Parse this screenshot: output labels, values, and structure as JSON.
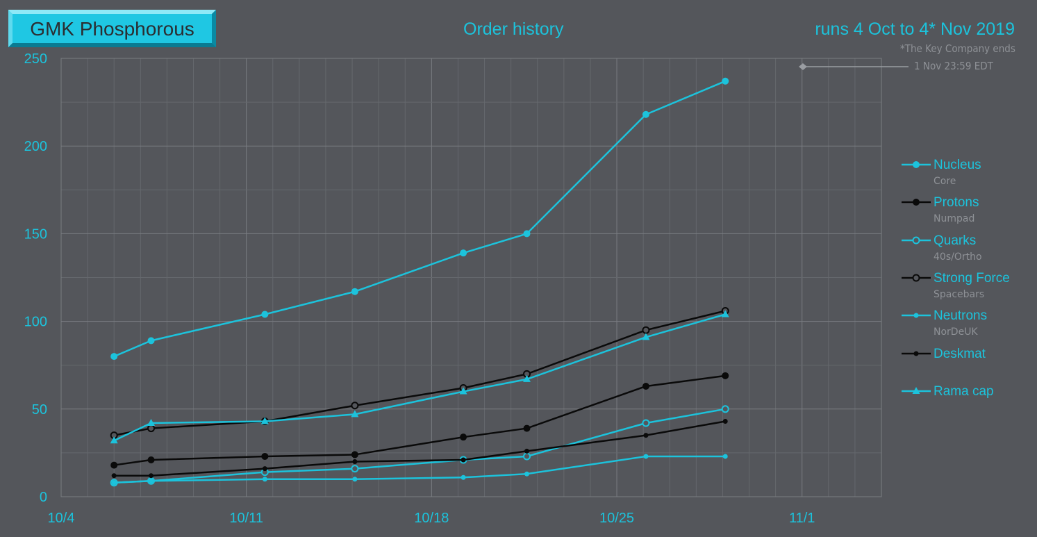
{
  "badge": {
    "label": "GMK Phosphorous"
  },
  "header": {
    "title": "Order history",
    "runs": "runs 4 Oct to 4* Nov 2019"
  },
  "note": {
    "line1": "*The Key Company ends",
    "line2": "1 Nov  23:59 EDT"
  },
  "colors": {
    "cyan": "#1cc3dc",
    "black": "#0a0a0a",
    "grid": "#6b6e73",
    "background": "#54565b"
  },
  "chart_data": {
    "type": "line",
    "x_ticks": [
      "10/4",
      "10/11",
      "10/18",
      "10/25",
      "11/1"
    ],
    "y_ticks": [
      0,
      50,
      100,
      150,
      200,
      250
    ],
    "xlim": [
      "10/4",
      "11/4"
    ],
    "ylim": [
      0,
      250
    ],
    "grid": true,
    "legend_position": "right",
    "x": [
      "10/6",
      "10/7.4",
      "10/11.7",
      "10/15.1",
      "10/19.2",
      "10/21.6",
      "10/26.1",
      "10/29.1"
    ],
    "series": [
      {
        "name": "Nucleus",
        "sub": "Core",
        "color": "#1cc3dc",
        "marker": "filled-circle",
        "values": [
          80,
          89,
          104,
          117,
          139,
          150,
          218,
          237
        ]
      },
      {
        "name": "Protons",
        "sub": "Numpad",
        "color": "#0a0a0a",
        "marker": "filled-circle",
        "values": [
          18,
          21,
          23,
          24,
          34,
          39,
          63,
          69
        ]
      },
      {
        "name": "Quarks",
        "sub": "40s/Ortho",
        "color": "#1cc3dc",
        "marker": "open-circle",
        "values": [
          8,
          9,
          14,
          16,
          21,
          23,
          42,
          50
        ]
      },
      {
        "name": "Strong Force",
        "sub": "Spacebars",
        "color": "#0a0a0a",
        "marker": "open-circle",
        "values": [
          35,
          39,
          43,
          52,
          62,
          70,
          95,
          106
        ]
      },
      {
        "name": "Neutrons",
        "sub": "NorDeUK",
        "color": "#1cc3dc",
        "marker": "small-dot",
        "values": [
          8,
          9,
          10,
          10,
          11,
          13,
          23,
          23
        ]
      },
      {
        "name": "Deskmat",
        "sub": "",
        "color": "#0a0a0a",
        "marker": "small-dot",
        "values": [
          12,
          12,
          16,
          20,
          21,
          26,
          35,
          43
        ]
      },
      {
        "name": "Rama cap",
        "sub": "",
        "color": "#1cc3dc",
        "marker": "triangle",
        "values": [
          32,
          42,
          43,
          47,
          60,
          67,
          91,
          104
        ]
      }
    ]
  }
}
